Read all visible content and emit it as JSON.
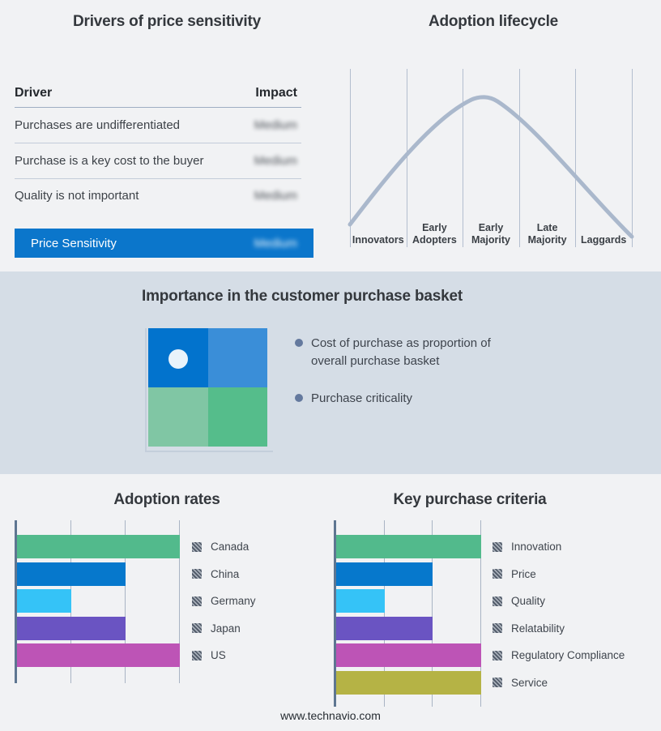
{
  "colors": {
    "page_bg": "#f1f2f4",
    "middle_bg": "#d5dde6",
    "accent_blue": "#0b76cb",
    "curve": "#aab8cc",
    "bar_axis": "#5e7691",
    "bar_gridline": "#a9b4c4",
    "bullet_dot": "#64799e"
  },
  "drivers": {
    "title": "Drivers of price sensitivity",
    "columns": {
      "driver": "Driver",
      "impact": "Impact"
    },
    "rows": [
      {
        "driver": "Purchases are undifferentiated",
        "impact": "Medium"
      },
      {
        "driver": "Purchase is a key cost to the buyer",
        "impact": "Medium"
      },
      {
        "driver": "Quality is not important",
        "impact": "Medium"
      }
    ],
    "highlight_row": {
      "label": "Price Sensitivity",
      "impact": "Medium",
      "bg": "#0b76cb"
    },
    "impact_values_blurred": true
  },
  "basket": {
    "title": "Importance in the customer purchase basket",
    "bullets": [
      "Cost of purchase as proportion of overall purchase basket",
      "Purchase criticality"
    ],
    "matrix": {
      "top_left": "#0273cd",
      "top_right": "#3a8ed8",
      "bottom_left": "#80c6a4",
      "bottom_right": "#55bd8b",
      "marker_quadrant": "top_left",
      "marker_color": "#e9f3fb"
    }
  },
  "chart_data": [
    {
      "id": "adoption_lifecycle",
      "type": "line",
      "title": "Adoption lifecycle",
      "categories": [
        "Innovators",
        "Early Adopters",
        "Early Majority",
        "Late Majority",
        "Laggards"
      ],
      "shape": "bell curve peaking over Early Majority",
      "curve_color": "#aab8cc",
      "gridlines": 6,
      "legend_position": "none"
    },
    {
      "id": "adoption_rates",
      "type": "bar",
      "orientation": "horizontal",
      "title": "Adoption rates",
      "categories": [
        "Canada",
        "China",
        "Germany",
        "Japan",
        "US"
      ],
      "values": [
        3,
        2,
        1,
        2,
        3
      ],
      "xlim": [
        0,
        3
      ],
      "grid": true,
      "colors": [
        "#52ba8c",
        "#0678cc",
        "#35c3f7",
        "#6a54c2",
        "#bd54b6"
      ],
      "legend_position": "right",
      "legend_swatch": "gray-hatched"
    },
    {
      "id": "key_purchase_criteria",
      "type": "bar",
      "orientation": "horizontal",
      "title": "Key purchase criteria",
      "categories": [
        "Innovation",
        "Price",
        "Quality",
        "Relatability",
        "Regulatory Compliance",
        "Service"
      ],
      "values": [
        3,
        2,
        1,
        2,
        3,
        3
      ],
      "xlim": [
        0,
        3
      ],
      "grid": true,
      "colors": [
        "#52ba8c",
        "#0678cc",
        "#35c3f7",
        "#6a54c2",
        "#bd54b6",
        "#b5b345"
      ],
      "legend_position": "right",
      "legend_swatch": "gray-hatched"
    }
  ],
  "footer": {
    "url": "www.technavio.com"
  }
}
